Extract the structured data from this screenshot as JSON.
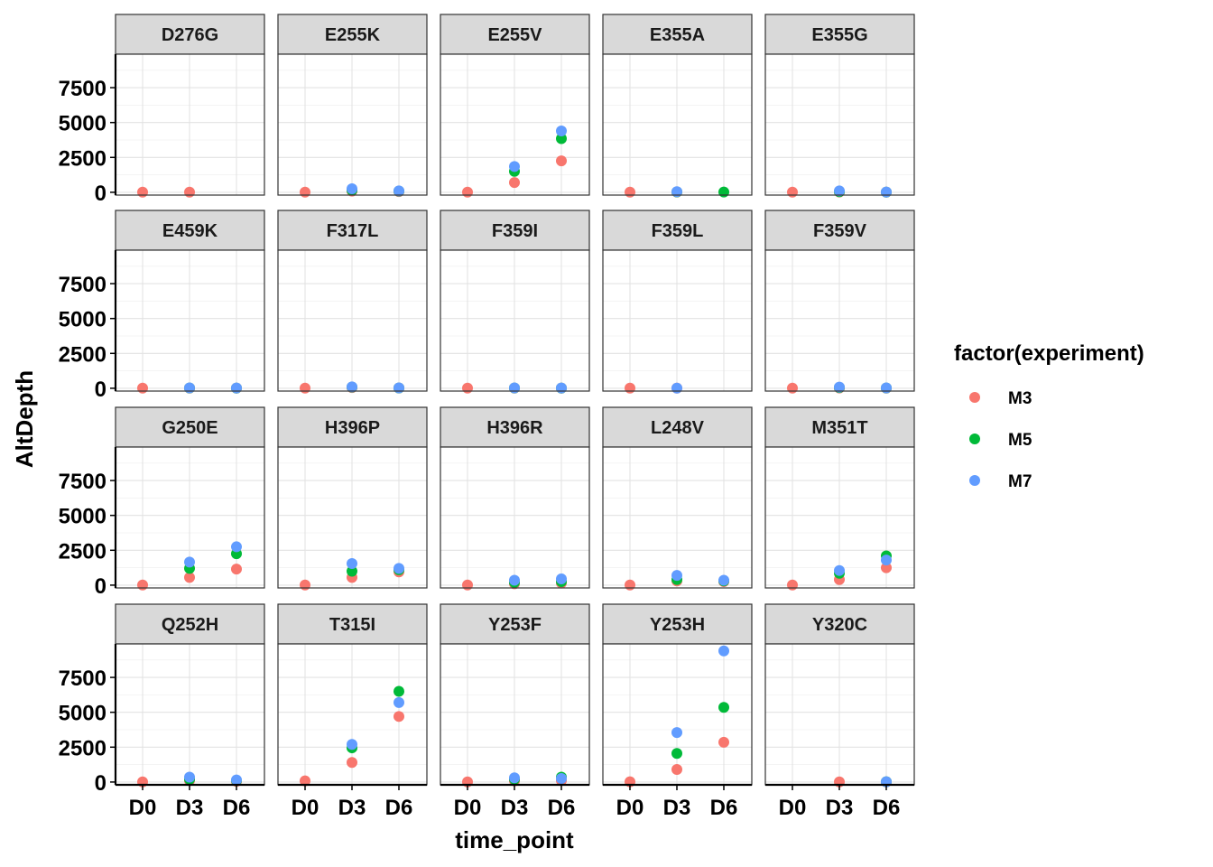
{
  "chart_data": {
    "type": "scatter",
    "xlabel": "time_point",
    "ylabel": "AltDepth",
    "categories": [
      "D0",
      "D3",
      "D6"
    ],
    "ylim": [
      -200,
      9900
    ],
    "yticks": [
      0,
      2500,
      5000,
      7500
    ],
    "legend": {
      "title": "factor(experiment)",
      "position": "right",
      "entries": [
        {
          "name": "M3",
          "color": "#F8766D"
        },
        {
          "name": "M5",
          "color": "#00BA38"
        },
        {
          "name": "M7",
          "color": "#619CFF"
        }
      ]
    },
    "panels": [
      {
        "label": "D276G",
        "points": [
          {
            "x": "D0",
            "series": "M3",
            "y": 10
          },
          {
            "x": "D3",
            "series": "M3",
            "y": 10
          }
        ]
      },
      {
        "label": "E255K",
        "points": [
          {
            "x": "D0",
            "series": "M3",
            "y": 10
          },
          {
            "x": "D3",
            "series": "M3",
            "y": 80
          },
          {
            "x": "D3",
            "series": "M5",
            "y": 150
          },
          {
            "x": "D3",
            "series": "M7",
            "y": 250
          },
          {
            "x": "D6",
            "series": "M3",
            "y": 50
          },
          {
            "x": "D6",
            "series": "M5",
            "y": 80
          },
          {
            "x": "D6",
            "series": "M7",
            "y": 100
          }
        ]
      },
      {
        "label": "E255V",
        "points": [
          {
            "x": "D0",
            "series": "M3",
            "y": 10
          },
          {
            "x": "D3",
            "series": "M3",
            "y": 700
          },
          {
            "x": "D3",
            "series": "M5",
            "y": 1500
          },
          {
            "x": "D3",
            "series": "M7",
            "y": 1850
          },
          {
            "x": "D6",
            "series": "M3",
            "y": 2250
          },
          {
            "x": "D6",
            "series": "M5",
            "y": 3850
          },
          {
            "x": "D6",
            "series": "M7",
            "y": 4400
          }
        ]
      },
      {
        "label": "E355A",
        "points": [
          {
            "x": "D0",
            "series": "M3",
            "y": 10
          },
          {
            "x": "D3",
            "series": "M3",
            "y": 20
          },
          {
            "x": "D3",
            "series": "M5",
            "y": 30
          },
          {
            "x": "D3",
            "series": "M7",
            "y": 40
          },
          {
            "x": "D6",
            "series": "M5",
            "y": 20
          }
        ]
      },
      {
        "label": "E355G",
        "points": [
          {
            "x": "D0",
            "series": "M3",
            "y": 10
          },
          {
            "x": "D3",
            "series": "M3",
            "y": 20
          },
          {
            "x": "D3",
            "series": "M5",
            "y": 40
          },
          {
            "x": "D3",
            "series": "M7",
            "y": 100
          },
          {
            "x": "D6",
            "series": "M3",
            "y": 10
          },
          {
            "x": "D6",
            "series": "M5",
            "y": 10
          },
          {
            "x": "D6",
            "series": "M7",
            "y": 20
          }
        ]
      },
      {
        "label": "E459K",
        "points": [
          {
            "x": "D0",
            "series": "M3",
            "y": 10
          },
          {
            "x": "D3",
            "series": "M3",
            "y": 10
          },
          {
            "x": "D3",
            "series": "M5",
            "y": 20
          },
          {
            "x": "D3",
            "series": "M7",
            "y": 30
          },
          {
            "x": "D6",
            "series": "M3",
            "y": 10
          },
          {
            "x": "D6",
            "series": "M5",
            "y": 10
          },
          {
            "x": "D6",
            "series": "M7",
            "y": 20
          }
        ]
      },
      {
        "label": "F317L",
        "points": [
          {
            "x": "D0",
            "series": "M3",
            "y": 10
          },
          {
            "x": "D3",
            "series": "M3",
            "y": 50
          },
          {
            "x": "D3",
            "series": "M5",
            "y": 80
          },
          {
            "x": "D3",
            "series": "M7",
            "y": 100
          },
          {
            "x": "D6",
            "series": "M3",
            "y": 20
          },
          {
            "x": "D6",
            "series": "M5",
            "y": 20
          },
          {
            "x": "D6",
            "series": "M7",
            "y": 30
          }
        ]
      },
      {
        "label": "F359I",
        "points": [
          {
            "x": "D0",
            "series": "M3",
            "y": 10
          },
          {
            "x": "D3",
            "series": "M3",
            "y": 10
          },
          {
            "x": "D3",
            "series": "M5",
            "y": 20
          },
          {
            "x": "D3",
            "series": "M7",
            "y": 30
          },
          {
            "x": "D6",
            "series": "M3",
            "y": 10
          },
          {
            "x": "D6",
            "series": "M5",
            "y": 10
          },
          {
            "x": "D6",
            "series": "M7",
            "y": 20
          }
        ]
      },
      {
        "label": "F359L",
        "points": [
          {
            "x": "D0",
            "series": "M3",
            "y": 10
          },
          {
            "x": "D3",
            "series": "M3",
            "y": 10
          },
          {
            "x": "D3",
            "series": "M7",
            "y": 10
          }
        ]
      },
      {
        "label": "F359V",
        "points": [
          {
            "x": "D0",
            "series": "M3",
            "y": 10
          },
          {
            "x": "D3",
            "series": "M3",
            "y": 20
          },
          {
            "x": "D3",
            "series": "M5",
            "y": 50
          },
          {
            "x": "D3",
            "series": "M7",
            "y": 80
          },
          {
            "x": "D6",
            "series": "M3",
            "y": 10
          },
          {
            "x": "D6",
            "series": "M5",
            "y": 20
          },
          {
            "x": "D6",
            "series": "M7",
            "y": 30
          }
        ]
      },
      {
        "label": "G250E",
        "points": [
          {
            "x": "D0",
            "series": "M3",
            "y": 10
          },
          {
            "x": "D3",
            "series": "M3",
            "y": 550
          },
          {
            "x": "D3",
            "series": "M5",
            "y": 1200
          },
          {
            "x": "D3",
            "series": "M7",
            "y": 1650
          },
          {
            "x": "D6",
            "series": "M3",
            "y": 1150
          },
          {
            "x": "D6",
            "series": "M5",
            "y": 2250
          },
          {
            "x": "D6",
            "series": "M7",
            "y": 2750
          }
        ]
      },
      {
        "label": "H396P",
        "points": [
          {
            "x": "D0",
            "series": "M3",
            "y": 10
          },
          {
            "x": "D3",
            "series": "M3",
            "y": 550
          },
          {
            "x": "D3",
            "series": "M5",
            "y": 1000
          },
          {
            "x": "D3",
            "series": "M7",
            "y": 1550
          },
          {
            "x": "D6",
            "series": "M3",
            "y": 950
          },
          {
            "x": "D6",
            "series": "M5",
            "y": 1100
          },
          {
            "x": "D6",
            "series": "M7",
            "y": 1200
          }
        ]
      },
      {
        "label": "H396R",
        "points": [
          {
            "x": "D0",
            "series": "M3",
            "y": 10
          },
          {
            "x": "D3",
            "series": "M3",
            "y": 100
          },
          {
            "x": "D3",
            "series": "M5",
            "y": 200
          },
          {
            "x": "D3",
            "series": "M7",
            "y": 350
          },
          {
            "x": "D6",
            "series": "M3",
            "y": 150
          },
          {
            "x": "D6",
            "series": "M5",
            "y": 250
          },
          {
            "x": "D6",
            "series": "M7",
            "y": 450
          }
        ]
      },
      {
        "label": "L248V",
        "points": [
          {
            "x": "D0",
            "series": "M3",
            "y": 10
          },
          {
            "x": "D3",
            "series": "M3",
            "y": 300
          },
          {
            "x": "D3",
            "series": "M5",
            "y": 400
          },
          {
            "x": "D3",
            "series": "M7",
            "y": 700
          },
          {
            "x": "D6",
            "series": "M3",
            "y": 250
          },
          {
            "x": "D6",
            "series": "M5",
            "y": 300
          },
          {
            "x": "D6",
            "series": "M7",
            "y": 350
          }
        ]
      },
      {
        "label": "M351T",
        "points": [
          {
            "x": "D0",
            "series": "M3",
            "y": 10
          },
          {
            "x": "D3",
            "series": "M3",
            "y": 400
          },
          {
            "x": "D3",
            "series": "M5",
            "y": 850
          },
          {
            "x": "D3",
            "series": "M7",
            "y": 1050
          },
          {
            "x": "D6",
            "series": "M3",
            "y": 1250
          },
          {
            "x": "D6",
            "series": "M5",
            "y": 2100
          },
          {
            "x": "D6",
            "series": "M7",
            "y": 1800
          }
        ]
      },
      {
        "label": "Q252H",
        "points": [
          {
            "x": "D0",
            "series": "M3",
            "y": 10
          },
          {
            "x": "D3",
            "series": "M3",
            "y": 100
          },
          {
            "x": "D3",
            "series": "M5",
            "y": 200
          },
          {
            "x": "D3",
            "series": "M7",
            "y": 350
          },
          {
            "x": "D6",
            "series": "M3",
            "y": 50
          },
          {
            "x": "D6",
            "series": "M5",
            "y": 100
          },
          {
            "x": "D6",
            "series": "M7",
            "y": 150
          }
        ]
      },
      {
        "label": "T315I",
        "points": [
          {
            "x": "D0",
            "series": "M3",
            "y": 80
          },
          {
            "x": "D3",
            "series": "M3",
            "y": 1400
          },
          {
            "x": "D3",
            "series": "M5",
            "y": 2450
          },
          {
            "x": "D3",
            "series": "M7",
            "y": 2700
          },
          {
            "x": "D6",
            "series": "M3",
            "y": 4700
          },
          {
            "x": "D6",
            "series": "M5",
            "y": 6500
          },
          {
            "x": "D6",
            "series": "M7",
            "y": 5700
          }
        ]
      },
      {
        "label": "Y253F",
        "points": [
          {
            "x": "D0",
            "series": "M3",
            "y": 10
          },
          {
            "x": "D3",
            "series": "M3",
            "y": 80
          },
          {
            "x": "D3",
            "series": "M5",
            "y": 200
          },
          {
            "x": "D3",
            "series": "M7",
            "y": 300
          },
          {
            "x": "D6",
            "series": "M3",
            "y": 100
          },
          {
            "x": "D6",
            "series": "M5",
            "y": 350
          },
          {
            "x": "D6",
            "series": "M7",
            "y": 250
          }
        ]
      },
      {
        "label": "Y253H",
        "points": [
          {
            "x": "D0",
            "series": "M3",
            "y": 20
          },
          {
            "x": "D3",
            "series": "M3",
            "y": 900
          },
          {
            "x": "D3",
            "series": "M5",
            "y": 2050
          },
          {
            "x": "D3",
            "series": "M7",
            "y": 3550
          },
          {
            "x": "D6",
            "series": "M3",
            "y": 2850
          },
          {
            "x": "D6",
            "series": "M5",
            "y": 5350
          },
          {
            "x": "D6",
            "series": "M7",
            "y": 9400
          }
        ]
      },
      {
        "label": "Y320C",
        "points": [
          {
            "x": "D3",
            "series": "M3",
            "y": 10
          },
          {
            "x": "D6",
            "series": "M3",
            "y": 10
          },
          {
            "x": "D6",
            "series": "M5",
            "y": 20
          },
          {
            "x": "D6",
            "series": "M7",
            "y": 20
          }
        ]
      }
    ]
  }
}
